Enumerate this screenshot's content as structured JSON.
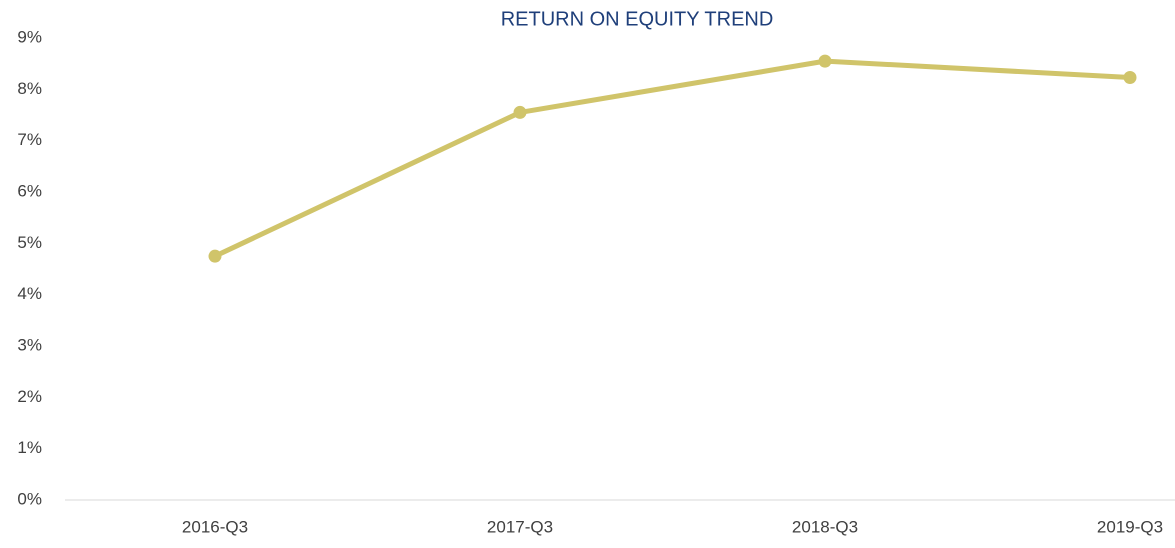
{
  "chart_data": {
    "type": "line",
    "title": "RETURN ON EQUITY TREND",
    "categories": [
      "2016-Q3",
      "2017-Q3",
      "2018-Q3",
      "2019-Q3"
    ],
    "series": [
      {
        "name": "Return on Equity",
        "color": "#d0c46a",
        "values": [
          4.75,
          7.55,
          8.55,
          8.23
        ]
      }
    ],
    "ylim": [
      0,
      9
    ],
    "yticks": [
      {
        "value": 0,
        "label": "0%"
      },
      {
        "value": 1,
        "label": "1%"
      },
      {
        "value": 2,
        "label": "2%"
      },
      {
        "value": 3,
        "label": "3%"
      },
      {
        "value": 4,
        "label": "4%"
      },
      {
        "value": 5,
        "label": "5%"
      },
      {
        "value": 6,
        "label": "6%"
      },
      {
        "value": 7,
        "label": "7%"
      },
      {
        "value": 8,
        "label": "8%"
      },
      {
        "value": 9,
        "label": "9%"
      }
    ],
    "grid": false,
    "legend": false
  }
}
